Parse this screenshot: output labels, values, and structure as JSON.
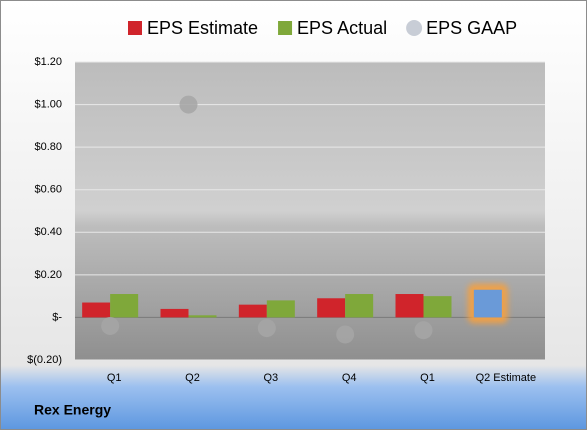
{
  "chart_data": {
    "type": "bar",
    "title": "Rex Energy",
    "categories": [
      "Q1",
      "Q2",
      "Q3",
      "Q4",
      "Q1",
      "Q2 Estimate"
    ],
    "series": [
      {
        "name": "EPS Estimate",
        "color": "#d0242b",
        "values": [
          0.07,
          0.04,
          0.06,
          0.09,
          0.11,
          0.13
        ],
        "last_color": "#6a9ad8"
      },
      {
        "name": "EPS Actual",
        "color": "#7fa83a",
        "values": [
          0.11,
          0.01,
          0.08,
          0.11,
          0.1,
          null
        ]
      },
      {
        "name": "EPS GAAP",
        "color": "#a6a6a6",
        "type": "scatter",
        "values": [
          -0.04,
          1.0,
          -0.05,
          -0.08,
          -0.06,
          null
        ]
      }
    ],
    "ylim": [
      -0.2,
      1.2
    ],
    "yticks": [
      {
        "value": -0.2,
        "label": "$(0.20)"
      },
      {
        "value": 0,
        "label": "$-"
      },
      {
        "value": 0.2,
        "label": "$0.20"
      },
      {
        "value": 0.4,
        "label": "$0.40"
      },
      {
        "value": 0.6,
        "label": "$0.60"
      },
      {
        "value": 0.8,
        "label": "$0.80"
      },
      {
        "value": 1.0,
        "label": "$1.00"
      },
      {
        "value": 1.2,
        "label": "$1.20"
      }
    ],
    "grid": true,
    "legend": "top"
  }
}
